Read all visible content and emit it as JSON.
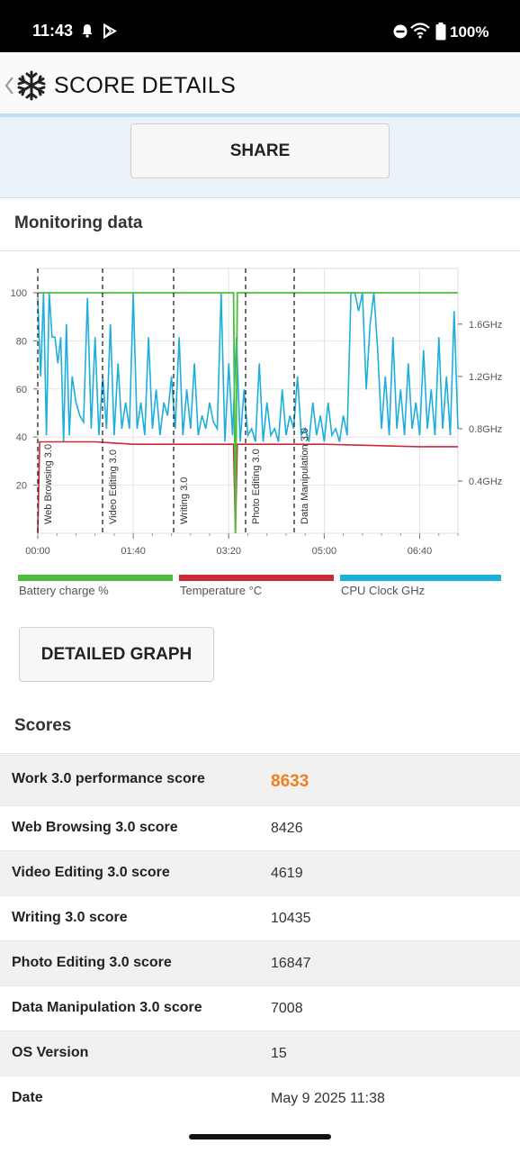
{
  "status_bar": {
    "time": "11:43",
    "battery": "100%",
    "icons": [
      "bell-icon",
      "play-store-icon",
      "do-not-disturb-icon",
      "wifi-icon",
      "battery-icon"
    ]
  },
  "app_bar": {
    "title": "SCORE DETAILS",
    "icons": [
      "back-chevron-icon",
      "snowflake-icon"
    ]
  },
  "share_button": "SHARE",
  "monitoring": {
    "title": "Monitoring data",
    "detailed_graph_button": "DETAILED GRAPH"
  },
  "chart_data": {
    "type": "line",
    "xlabel": "",
    "ylabel": "",
    "x_ticks": [
      "00:00",
      "01:40",
      "03:20",
      "05:00",
      "06:40"
    ],
    "y_ticks": [
      "100",
      "80",
      "60",
      "40",
      "20"
    ],
    "y2_ticks": [
      "1.6GHz",
      "1.2GHz",
      "0.8GHz",
      "0.4GHz"
    ],
    "x_range_seconds": [
      0,
      440
    ],
    "ylim": [
      0,
      100
    ],
    "y2lim": [
      0,
      1.84
    ],
    "grid": true,
    "markers": [
      {
        "label": "Web Browsing 3.0",
        "t": 0
      },
      {
        "label": "Video Editing 3.0",
        "t": 100
      },
      {
        "label": "Writing 3.0",
        "t": 208
      },
      {
        "label": "Photo Editing 3.0",
        "t": 315
      },
      {
        "label": "Data Manipulation 3.0",
        "t": 390
      }
    ],
    "series": [
      {
        "name": "Battery charge %",
        "color": "#4cbe3c",
        "t": [
          0,
          1,
          205,
          207,
          209,
          211,
          440
        ],
        "values": [
          100,
          100,
          100,
          0,
          100,
          100,
          100
        ]
      },
      {
        "name": "Temperature °C",
        "color": "#cc2936",
        "t": [
          0,
          2,
          30,
          60,
          100,
          150,
          190,
          200,
          205,
          207,
          209,
          211,
          300,
          400,
          440
        ],
        "values": [
          0,
          38,
          38,
          38,
          37,
          37,
          37,
          37,
          37,
          0,
          37,
          37,
          37,
          36,
          36
        ]
      },
      {
        "name": "CPU Clock GHz",
        "color": "#1eaedb",
        "t": [
          0,
          3,
          6,
          9,
          12,
          15,
          18,
          21,
          24,
          27,
          30,
          33,
          36,
          40,
          44,
          48,
          52,
          56,
          60,
          64,
          68,
          72,
          76,
          80,
          84,
          88,
          92,
          96,
          100,
          104,
          108,
          112,
          116,
          120,
          124,
          128,
          132,
          136,
          140,
          144,
          148,
          152,
          156,
          160,
          164,
          168,
          172,
          176,
          180,
          184,
          188,
          192,
          196,
          200,
          204,
          208,
          212,
          216,
          220,
          224,
          228,
          232,
          236,
          240,
          244,
          248,
          252,
          256,
          260,
          264,
          268,
          272,
          276,
          280,
          284,
          288,
          292,
          296,
          300,
          304,
          308,
          312,
          316,
          320,
          324,
          328,
          332,
          336,
          340,
          344,
          348,
          352,
          356,
          360,
          364,
          368,
          372,
          376,
          380,
          384,
          388,
          392,
          396,
          400,
          404,
          408,
          412,
          416,
          420,
          424,
          428,
          432,
          436,
          440
        ],
        "values": [
          1.8,
          1.2,
          1.84,
          0.75,
          1.84,
          1.5,
          1.5,
          1.3,
          1.5,
          0.7,
          1.6,
          0.75,
          1.2,
          1.0,
          0.9,
          0.85,
          1.8,
          0.8,
          1.5,
          0.75,
          1.2,
          0.8,
          1.6,
          0.75,
          1.3,
          0.8,
          1.0,
          0.8,
          1.84,
          0.8,
          1.0,
          0.75,
          1.5,
          0.8,
          1.1,
          0.75,
          1.0,
          0.9,
          1.2,
          0.8,
          1.5,
          0.75,
          1.1,
          0.8,
          1.3,
          0.75,
          0.9,
          0.8,
          1.0,
          0.85,
          0.8,
          1.84,
          0.7,
          1.3,
          0.75,
          1.5,
          0.7,
          1.1,
          0.75,
          0.8,
          0.7,
          1.3,
          0.7,
          1.0,
          0.75,
          0.8,
          0.7,
          1.1,
          0.75,
          0.9,
          0.8,
          1.2,
          0.75,
          0.8,
          0.7,
          1.0,
          0.75,
          0.9,
          0.7,
          1.0,
          0.75,
          0.8,
          0.7,
          0.9,
          0.75,
          1.84,
          1.84,
          1.7,
          1.84,
          1.1,
          1.6,
          1.84,
          1.4,
          0.8,
          1.2,
          0.75,
          1.5,
          0.8,
          1.1,
          0.75,
          1.3,
          0.8,
          1.0,
          0.75,
          1.4,
          0.8,
          1.1,
          0.75,
          1.5,
          0.8,
          1.2,
          0.75,
          1.7,
          0.8
        ]
      }
    ]
  },
  "scores": {
    "title": "Scores",
    "rows": [
      {
        "label": "Work 3.0 performance score",
        "value": "8633"
      },
      {
        "label": "Web Browsing 3.0 score",
        "value": "8426"
      },
      {
        "label": "Video Editing 3.0 score",
        "value": "4619"
      },
      {
        "label": "Writing 3.0 score",
        "value": "10435"
      },
      {
        "label": "Photo Editing 3.0 score",
        "value": "16847"
      },
      {
        "label": "Data Manipulation 3.0 score",
        "value": "7008"
      },
      {
        "label": "OS Version",
        "value": "15"
      },
      {
        "label": "Date",
        "value": "May 9 2025 11:38"
      }
    ]
  }
}
